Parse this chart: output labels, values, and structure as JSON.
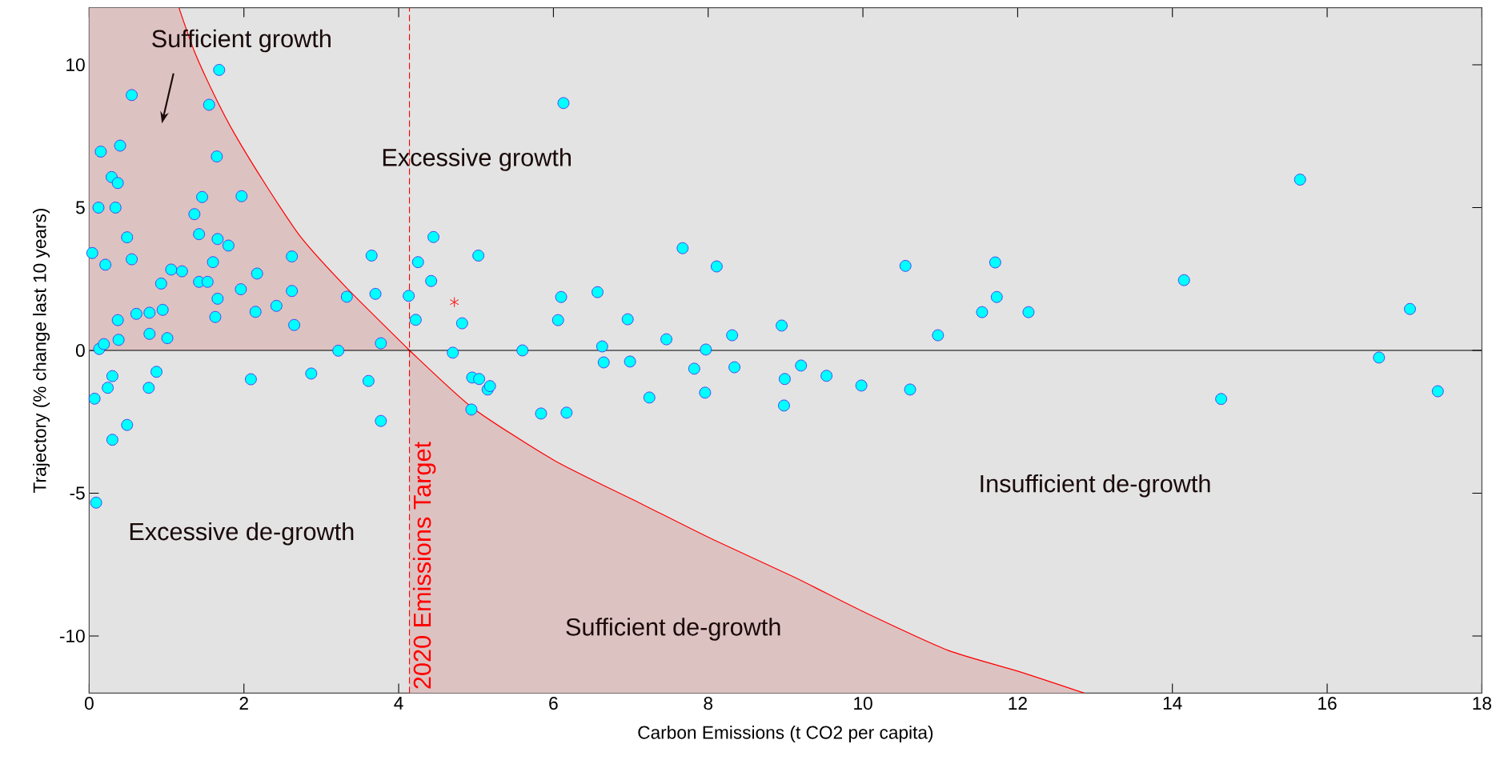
{
  "chart_data": {
    "type": "scatter",
    "xlabel": "Carbon Emissions (t CO2 per capita)",
    "ylabel": "Trajectory (% change last 10 years)",
    "xlim": [
      0,
      18
    ],
    "ylim": [
      -12,
      12
    ],
    "xticks": [
      0,
      2,
      4,
      6,
      8,
      10,
      12,
      14,
      16,
      18
    ],
    "yticks": [
      -10,
      -5,
      0,
      5,
      10
    ],
    "grid": false,
    "annotations": [
      "Sufficient growth",
      "Excessive growth",
      "Excessive de-growth",
      "Insufficient de-growth",
      "Sufficient de-growth"
    ],
    "ref_lines": [
      {
        "axis": "y",
        "value": 0,
        "color": "#000000",
        "line_style": "solid"
      },
      {
        "axis": "x",
        "value": 4.14,
        "label": "2020 Emissions Target",
        "color": "#ff0000",
        "line_style": "dashed"
      }
    ],
    "series": [
      {
        "type": "line",
        "marker": "none",
        "color": "#ff0000",
        "x": [
          0,
          1.16,
          1.36,
          1.61,
          1.88,
          2.3,
          2.74,
          3.33,
          4.14,
          4.14,
          4.95,
          6.01,
          7.15,
          8.06,
          9.12,
          10.03,
          11.1,
          12.0,
          12.86
        ],
        "values": [
          null,
          12.0,
          10.47,
          8.98,
          7.58,
          5.72,
          3.95,
          2.18,
          0,
          0,
          -2.0,
          -3.85,
          -5.39,
          -6.62,
          -7.95,
          -9.18,
          -10.5,
          -11.23,
          -12.0
        ],
        "lower": [
          0,
          0,
          0,
          0,
          0,
          0,
          0,
          0,
          0,
          -12,
          -12,
          -12,
          -12,
          -12,
          -12,
          -12,
          -12,
          -12,
          -12
        ],
        "upper": [
          12,
          12.0,
          10.47,
          8.98,
          7.58,
          5.72,
          3.95,
          2.18,
          0,
          0,
          -2.0,
          -3.85,
          -5.39,
          -6.62,
          -7.95,
          -9.18,
          -10.5,
          -11.23,
          -12.0
        ]
      },
      {
        "color": "#00ffff",
        "marker": "circle",
        "x": [
          0.04,
          0.07,
          0.09,
          0.12,
          0.15,
          0.13,
          0.19,
          0.21,
          0.24,
          0.29,
          0.3,
          0.3,
          0.34,
          0.37,
          0.37,
          0.38,
          0.4,
          0.49,
          0.49,
          0.55,
          0.55,
          0.61,
          0.78,
          0.78,
          0.77,
          0.87,
          0.93,
          0.95,
          1.01,
          1.06,
          1.2,
          1.36,
          1.42,
          1.42,
          1.46,
          1.53,
          1.55,
          1.6,
          1.63,
          1.65,
          1.66,
          1.66,
          1.68,
          1.8,
          1.96,
          1.97,
          2.09,
          2.15,
          2.17,
          2.42,
          2.62,
          2.62,
          2.65,
          2.87,
          3.22,
          3.33,
          3.61,
          3.65,
          3.7,
          3.77,
          3.77,
          4.13,
          4.22,
          4.25,
          4.42,
          4.45,
          4.7,
          4.82,
          4.94,
          4.95,
          5.03,
          5.04,
          5.15,
          5.18,
          5.6,
          5.84,
          6.06,
          6.1,
          6.13,
          6.17,
          6.57,
          6.63,
          6.65,
          6.96,
          6.99,
          7.24,
          7.46,
          7.67,
          7.82,
          7.97,
          7.96,
          8.11,
          8.31,
          8.34,
          8.95,
          8.98,
          8.99,
          9.2,
          9.53,
          9.98,
          10.55,
          10.61,
          10.97,
          11.54,
          11.71,
          11.73,
          12.14,
          14.15,
          14.63,
          15.65,
          16.67,
          17.07,
          17.43
        ],
        "values": [
          3.41,
          -1.69,
          -5.33,
          5.0,
          6.96,
          0.05,
          0.22,
          3.0,
          -1.31,
          6.07,
          -0.9,
          -3.13,
          5.0,
          5.86,
          1.06,
          0.37,
          7.17,
          3.96,
          -2.61,
          3.19,
          8.94,
          1.28,
          0.58,
          1.32,
          -1.31,
          -0.75,
          2.34,
          1.42,
          0.43,
          2.83,
          2.77,
          4.77,
          4.07,
          2.4,
          5.37,
          2.4,
          8.6,
          3.09,
          1.17,
          6.79,
          3.9,
          1.81,
          9.82,
          3.67,
          2.14,
          5.4,
          -1.01,
          1.35,
          2.69,
          1.56,
          2.08,
          3.29,
          0.89,
          -0.81,
          -0.01,
          1.88,
          -1.07,
          3.32,
          1.98,
          0.25,
          -2.47,
          1.91,
          1.07,
          3.09,
          2.43,
          3.97,
          -0.08,
          0.95,
          -2.07,
          -0.95,
          3.32,
          -1.0,
          -1.37,
          -1.25,
          0.0,
          -2.21,
          1.06,
          1.87,
          8.66,
          -2.18,
          2.04,
          0.14,
          -0.42,
          1.09,
          -0.39,
          -1.65,
          0.39,
          3.58,
          -0.64,
          0.03,
          -1.48,
          2.94,
          0.53,
          -0.59,
          0.87,
          -1.93,
          -1.0,
          -0.53,
          -0.89,
          -1.23,
          2.96,
          -1.37,
          0.53,
          1.34,
          3.08,
          1.87,
          1.34,
          2.46,
          -1.7,
          5.98,
          -0.25,
          1.45,
          -1.43
        ]
      },
      {
        "color": "#ff0000",
        "marker": "cross",
        "x": [
          4.72
        ],
        "values": [
          1.69
        ]
      }
    ]
  }
}
